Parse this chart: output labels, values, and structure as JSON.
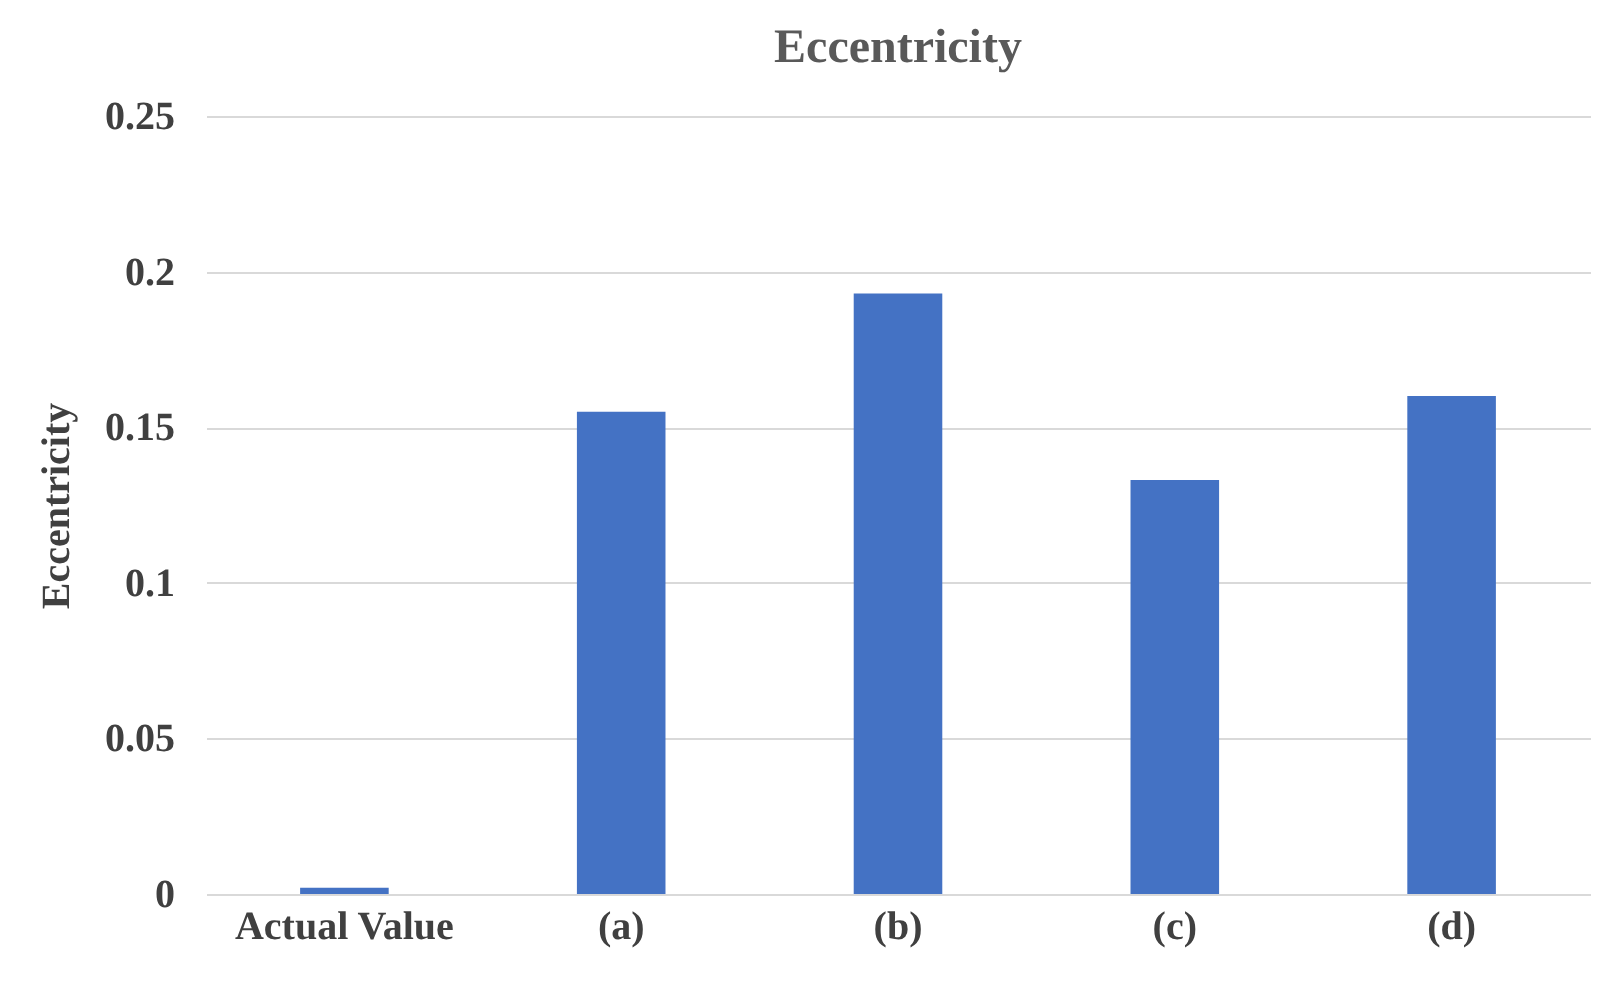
{
  "chart_data": {
    "type": "bar",
    "title": "Eccentricity",
    "ylabel": "Eccentricity",
    "categories": [
      "Actual Value",
      "(a)",
      "(b)",
      "(c)",
      "(d)"
    ],
    "values": [
      0.002,
      0.155,
      0.193,
      0.133,
      0.16
    ],
    "color": "#4472c4",
    "ylim": [
      0,
      0.25
    ],
    "yticks": [
      0,
      0.05,
      0.1,
      0.15,
      0.2,
      0.25
    ],
    "grid": true
  }
}
